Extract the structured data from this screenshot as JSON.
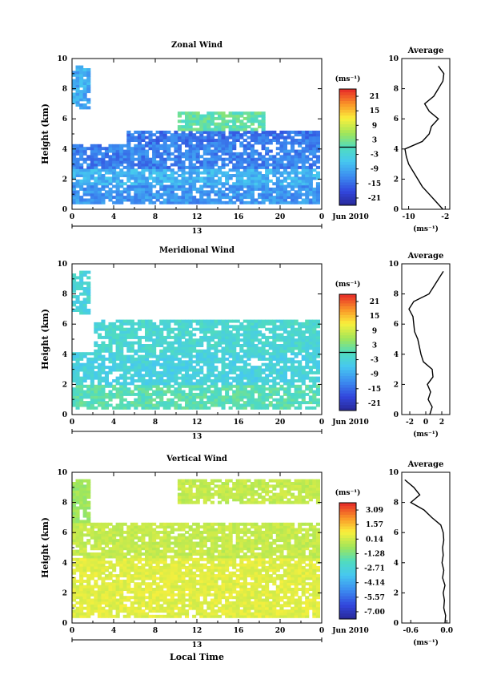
{
  "chart_data": [
    {
      "type": "heatmap",
      "title": "Zonal Wind",
      "ylabel": "Height (km)",
      "xlabel": "",
      "x_ticks": [
        "0",
        "4",
        "8",
        "12",
        "16",
        "20",
        "0"
      ],
      "y_ticks": [
        "0",
        "2",
        "4",
        "6",
        "8",
        "10"
      ],
      "xlim": [
        0,
        24
      ],
      "ylim": [
        0,
        10
      ],
      "date_tick": "13",
      "date_label": "Jun 2010",
      "colorbar": {
        "unit": "(ms⁻¹)",
        "ticks": [
          "21",
          "15",
          "9",
          "3",
          "-3",
          "-9",
          "-15",
          "-21"
        ],
        "range": [
          -24,
          24
        ],
        "zero_line": 0
      },
      "field_model": {
        "bands": [
          {
            "y0": 0.3,
            "y1": 1.6,
            "x0": 0,
            "x1": 24,
            "value": -11
          },
          {
            "y0": 1.6,
            "y1": 2.6,
            "x0": 0,
            "x1": 24,
            "value": -8
          },
          {
            "y0": 2.6,
            "y1": 4.2,
            "x0": 0,
            "x1": 24,
            "value": -13
          },
          {
            "y0": 4.2,
            "y1": 5.2,
            "x0": 5,
            "x1": 24,
            "value": -14
          },
          {
            "y0": 5.2,
            "y1": 6.4,
            "x0": 10,
            "x1": 18.5,
            "value": 1
          },
          {
            "y0": 6.6,
            "y1": 9.5,
            "x0": 0,
            "x1": 1.5,
            "value": -9
          }
        ],
        "coverage": 0.82,
        "noise": 3
      },
      "average_profile": {
        "title": "Average",
        "xlabel": "(ms⁻¹)",
        "x_ticks": [
          "-10",
          "-2"
        ],
        "xlim": [
          -11.5,
          -1
        ],
        "height_km": [
          0,
          0.5,
          1,
          1.5,
          2,
          2.5,
          3,
          3.5,
          4,
          4.5,
          5,
          5.5,
          6,
          6.5,
          7,
          7.5,
          8,
          8.5,
          9,
          9.5
        ],
        "wind": [
          -2.5,
          -4,
          -5.5,
          -7,
          -8,
          -9,
          -10,
          -10.5,
          -10.8,
          -7,
          -5.5,
          -5,
          -3.5,
          -5.5,
          -6.5,
          -4.5,
          -3.5,
          -2.5,
          -2.3,
          -3.5
        ]
      }
    },
    {
      "type": "heatmap",
      "title": "Meridional Wind",
      "ylabel": "Height (km)",
      "xlabel": "",
      "x_ticks": [
        "0",
        "4",
        "8",
        "12",
        "16",
        "20",
        "0"
      ],
      "y_ticks": [
        "0",
        "2",
        "4",
        "6",
        "8",
        "10"
      ],
      "xlim": [
        0,
        24
      ],
      "ylim": [
        0,
        10
      ],
      "date_tick": "13",
      "date_label": "Jun 2010",
      "colorbar": {
        "unit": "(ms⁻¹)",
        "ticks": [
          "21",
          "15",
          "9",
          "3",
          "-3",
          "-9",
          "-15",
          "-21"
        ],
        "range": [
          -24,
          24
        ],
        "zero_line": 0
      },
      "field_model": {
        "bands": [
          {
            "y0": 0.3,
            "y1": 1.8,
            "x0": 0,
            "x1": 24,
            "value": 0.5
          },
          {
            "y0": 1.8,
            "y1": 4.0,
            "x0": 0,
            "x1": 24,
            "value": -3.5
          },
          {
            "y0": 4.0,
            "y1": 6.2,
            "x0": 2,
            "x1": 24,
            "value": -2
          },
          {
            "y0": 6.6,
            "y1": 9.5,
            "x0": 0,
            "x1": 1.5,
            "value": -3
          }
        ],
        "coverage": 0.8,
        "noise": 2.5
      },
      "average_profile": {
        "title": "Average",
        "xlabel": "(ms⁻¹)",
        "x_ticks": [
          "-2",
          "0",
          "2"
        ],
        "xlim": [
          -3,
          3
        ],
        "height_km": [
          0,
          0.5,
          1,
          1.5,
          2,
          2.5,
          3,
          3.5,
          4,
          4.5,
          5,
          5.5,
          6,
          6.5,
          7,
          7.5,
          8,
          8.5,
          9,
          9.5
        ],
        "wind": [
          0.5,
          0.8,
          0.3,
          0.6,
          0.2,
          0.9,
          0.8,
          -0.3,
          -0.6,
          -0.8,
          -1.0,
          -1.4,
          -1.5,
          -1.6,
          -2.1,
          -1.5,
          0.4,
          1.0,
          1.6,
          2.2
        ]
      }
    },
    {
      "type": "heatmap",
      "title": "Vertical Wind",
      "ylabel": "Height (km)",
      "xlabel": "Local Time",
      "x_ticks": [
        "0",
        "4",
        "8",
        "12",
        "16",
        "20",
        "0"
      ],
      "y_ticks": [
        "0",
        "2",
        "4",
        "6",
        "8",
        "10"
      ],
      "xlim": [
        0,
        24
      ],
      "ylim": [
        0,
        10
      ],
      "date_tick": "13",
      "date_label": "Jun 2010",
      "colorbar": {
        "unit": "(ms⁻¹)",
        "ticks": [
          "3.09",
          "1.57",
          "0.14",
          "-1.28",
          "-2.71",
          "-4.14",
          "-5.57",
          "-7.00"
        ],
        "range": [
          -7.7,
          3.8
        ]
      },
      "field_model": {
        "bands": [
          {
            "y0": 0.3,
            "y1": 4.2,
            "x0": 0,
            "x1": 24,
            "value": 0.5
          },
          {
            "y0": 4.2,
            "y1": 6.5,
            "x0": 0,
            "x1": 24,
            "value": 0.05
          },
          {
            "y0": 7.8,
            "y1": 9.5,
            "x0": 10,
            "x1": 24,
            "value": 0.0
          },
          {
            "y0": 6.5,
            "y1": 9.5,
            "x0": 0,
            "x1": 1.5,
            "value": -0.6
          }
        ],
        "coverage": 0.85,
        "noise": 0.35
      },
      "average_profile": {
        "title": "Average",
        "xlabel": "(ms⁻¹)",
        "x_ticks": [
          "-0.6",
          "0.0"
        ],
        "xlim": [
          -0.75,
          0.05
        ],
        "height_km": [
          0,
          0.5,
          1,
          1.5,
          2,
          2.5,
          3,
          3.5,
          4,
          4.5,
          5,
          5.5,
          6,
          6.5,
          7,
          7.5,
          8,
          8.5,
          9,
          9.5
        ],
        "wind": [
          -0.03,
          -0.02,
          -0.05,
          -0.04,
          -0.06,
          -0.03,
          -0.07,
          -0.05,
          -0.08,
          -0.06,
          -0.07,
          -0.05,
          -0.06,
          -0.1,
          -0.25,
          -0.38,
          -0.6,
          -0.45,
          -0.55,
          -0.7
        ]
      }
    }
  ]
}
